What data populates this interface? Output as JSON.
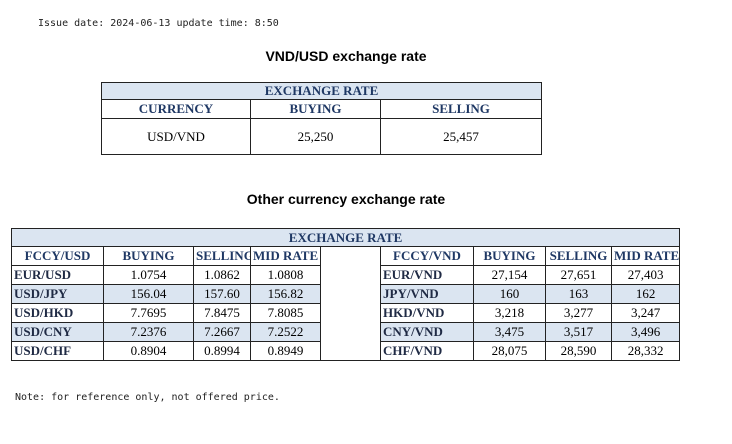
{
  "header": {
    "issue": "Issue date: 2024-06-13 update time: 8:50"
  },
  "usd_table": {
    "title": "VND/USD exchange rate",
    "heading": "EXCHANGE RATE",
    "columns": [
      "CURRENCY",
      "BUYING",
      "SELLING"
    ],
    "rows": [
      [
        "USD/VND",
        "25,250",
        "25,457"
      ]
    ]
  },
  "other_table": {
    "title": "Other currency exchange rate",
    "heading": "EXCHANGE RATE",
    "columns": [
      "FCCY/USD",
      "BUYING",
      "SELLING",
      "MID RATE",
      "FCCY/VND",
      "BUYING",
      "SELLING",
      "MID RATE"
    ],
    "rows": [
      [
        "EUR/USD",
        "1.0754",
        "1.0862",
        "1.0808",
        "EUR/VND",
        "27,154",
        "27,651",
        "27,403"
      ],
      [
        "USD/JPY",
        "156.04",
        "157.60",
        "156.82",
        "JPY/VND",
        "160",
        "163",
        "162"
      ],
      [
        "USD/HKD",
        "7.7695",
        "7.8475",
        "7.8085",
        "HKD/VND",
        "3,218",
        "3,277",
        "3,247"
      ],
      [
        "USD/CNY",
        "7.2376",
        "7.2667",
        "7.2522",
        "CNY/VND",
        "3,475",
        "3,517",
        "3,496"
      ],
      [
        "USD/CHF",
        "0.8904",
        "0.8994",
        "0.8949",
        "CHF/VND",
        "28,075",
        "28,590",
        "28,332"
      ]
    ]
  },
  "note": "Note: for reference only, not offered price."
}
